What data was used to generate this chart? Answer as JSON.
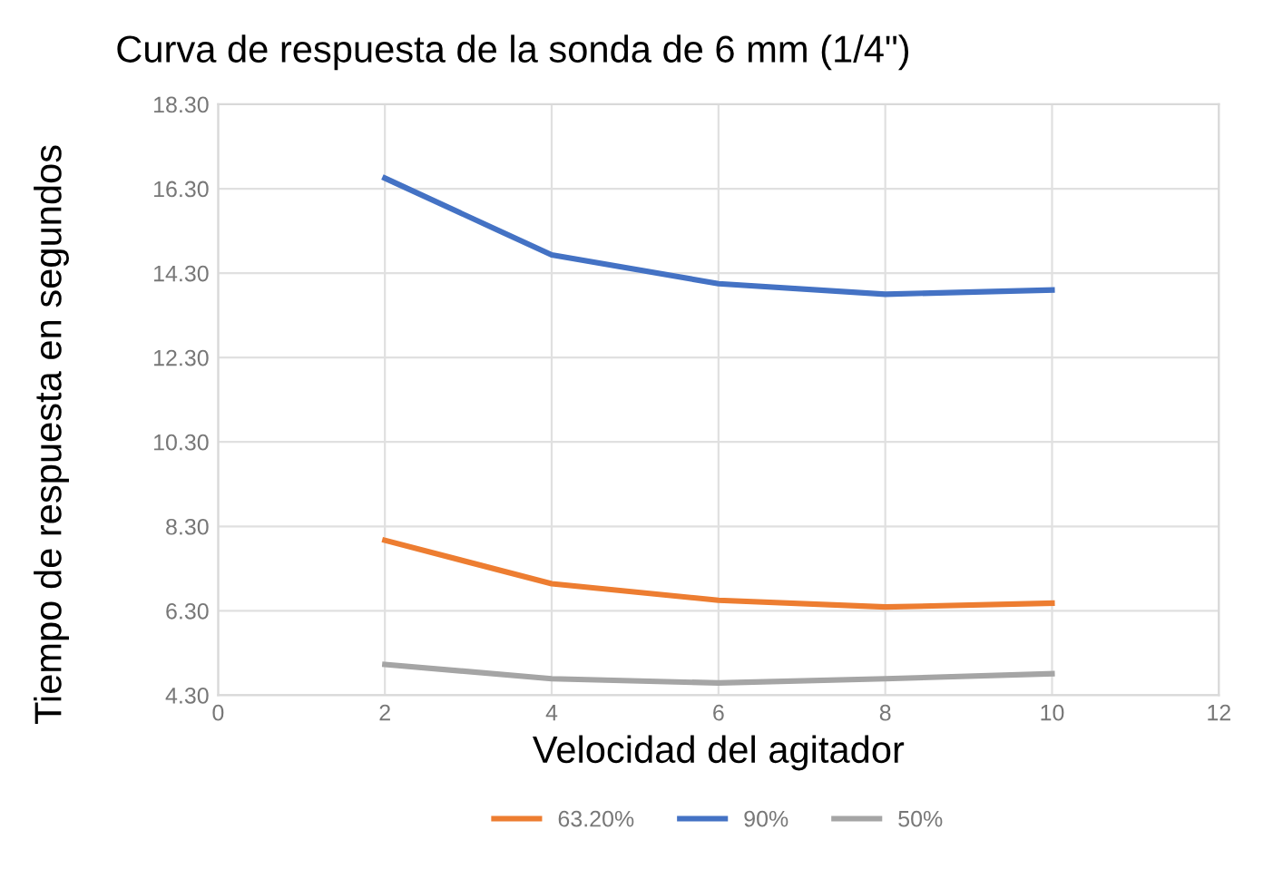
{
  "chart_data": {
    "type": "line",
    "title": "Curva de respuesta de la sonda de 6 mm (1/4\")",
    "xlabel": "Velocidad del agitador",
    "ylabel": "Tiempo de respuesta en segundos",
    "x": [
      2,
      4,
      6,
      8,
      10
    ],
    "series": [
      {
        "name": "63.20%",
        "color": "#ed7d31",
        "values": [
          7.97,
          6.94,
          6.55,
          6.39,
          6.48
        ]
      },
      {
        "name": "90%",
        "color": "#4472c4",
        "values": [
          16.55,
          14.73,
          14.05,
          13.8,
          13.9
        ]
      },
      {
        "name": "50%",
        "color": "#a5a5a5",
        "values": [
          5.03,
          4.69,
          4.59,
          4.69,
          4.81
        ]
      }
    ],
    "xlim": [
      0,
      12
    ],
    "xticks": [
      0,
      2,
      4,
      6,
      8,
      10,
      12
    ],
    "ylim": [
      4.3,
      18.3
    ],
    "yticks": [
      {
        "value": 4.3,
        "label": "4.30"
      },
      {
        "value": 6.3,
        "label": "6.30"
      },
      {
        "value": 8.3,
        "label": "8.30"
      },
      {
        "value": 10.3,
        "label": "10.30"
      },
      {
        "value": 12.3,
        "label": "12.30"
      },
      {
        "value": 14.3,
        "label": "14.30"
      },
      {
        "value": 16.3,
        "label": "16.30"
      },
      {
        "value": 18.3,
        "label": "18.30"
      }
    ],
    "grid": true,
    "legend": "bottom",
    "marker": "none",
    "line_style": "solid"
  }
}
